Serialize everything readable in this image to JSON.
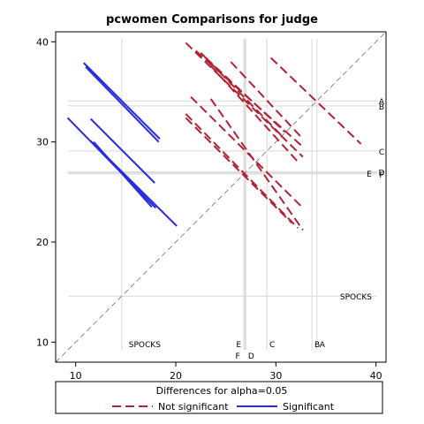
{
  "chart_data": {
    "type": "line",
    "title": "pcwomen Comparisons for judge",
    "xlabel": "",
    "ylabel": "",
    "xlim": [
      8,
      41
    ],
    "ylim": [
      8,
      41
    ],
    "x_ticks": [
      10,
      20,
      30,
      40
    ],
    "y_ticks": [
      10,
      20,
      30,
      40
    ],
    "grid": true,
    "diagonal_reference": true,
    "group_means": [
      {
        "label": "A",
        "mean": 34.1
      },
      {
        "label": "B",
        "mean": 33.6
      },
      {
        "label": "C",
        "mean": 29.1
      },
      {
        "label": "D",
        "mean": 27.0
      },
      {
        "label": "E",
        "mean": 26.9
      },
      {
        "label": "F",
        "mean": 26.8
      },
      {
        "label": "SPOCKS",
        "mean": 14.6
      }
    ],
    "series": [
      {
        "name": "Not significant",
        "color": "#b22234",
        "dash": true,
        "segments": [
          [
            [
              21.0,
              39.9
            ],
            [
              32.7,
              28.5
            ]
          ],
          [
            [
              22.0,
              39.1
            ],
            [
              32.7,
              29.5
            ]
          ],
          [
            [
              25.5,
              38.0
            ],
            [
              32.7,
              30.3
            ]
          ],
          [
            [
              29.5,
              38.4
            ],
            [
              38.5,
              29.8
            ]
          ],
          [
            [
              22.5,
              38.9
            ],
            [
              30.7,
              30.5
            ]
          ],
          [
            [
              23.0,
              38.4
            ],
            [
              30.9,
              31.0
            ]
          ],
          [
            [
              23.5,
              37.6
            ],
            [
              32.3,
              27.9
            ]
          ],
          [
            [
              21.5,
              34.5
            ],
            [
              32.5,
              23.6
            ]
          ],
          [
            [
              23.5,
              34.3
            ],
            [
              32.7,
              21.2
            ]
          ],
          [
            [
              21.0,
              32.8
            ],
            [
              32.2,
              21.4
            ]
          ],
          [
            [
              21.0,
              32.4
            ],
            [
              31.6,
              21.9
            ]
          ]
        ]
      },
      {
        "name": "Significant",
        "color": "#2a2ae0",
        "dash": false,
        "segments": [
          [
            [
              10.8,
              37.9
            ],
            [
              18.4,
              30.3
            ]
          ],
          [
            [
              11.0,
              37.5
            ],
            [
              18.3,
              30.0
            ]
          ],
          [
            [
              9.2,
              32.4
            ],
            [
              18.0,
              23.4
            ]
          ],
          [
            [
              11.5,
              32.3
            ],
            [
              17.9,
              25.9
            ]
          ],
          [
            [
              11.5,
              30.1
            ],
            [
              20.1,
              21.6
            ]
          ],
          [
            [
              11.8,
              30.0
            ],
            [
              17.6,
              23.5
            ]
          ]
        ]
      }
    ],
    "legend": {
      "position": "bottom",
      "title": "Differences for alpha=0.05",
      "entries": [
        "Not significant",
        "Significant"
      ]
    }
  }
}
